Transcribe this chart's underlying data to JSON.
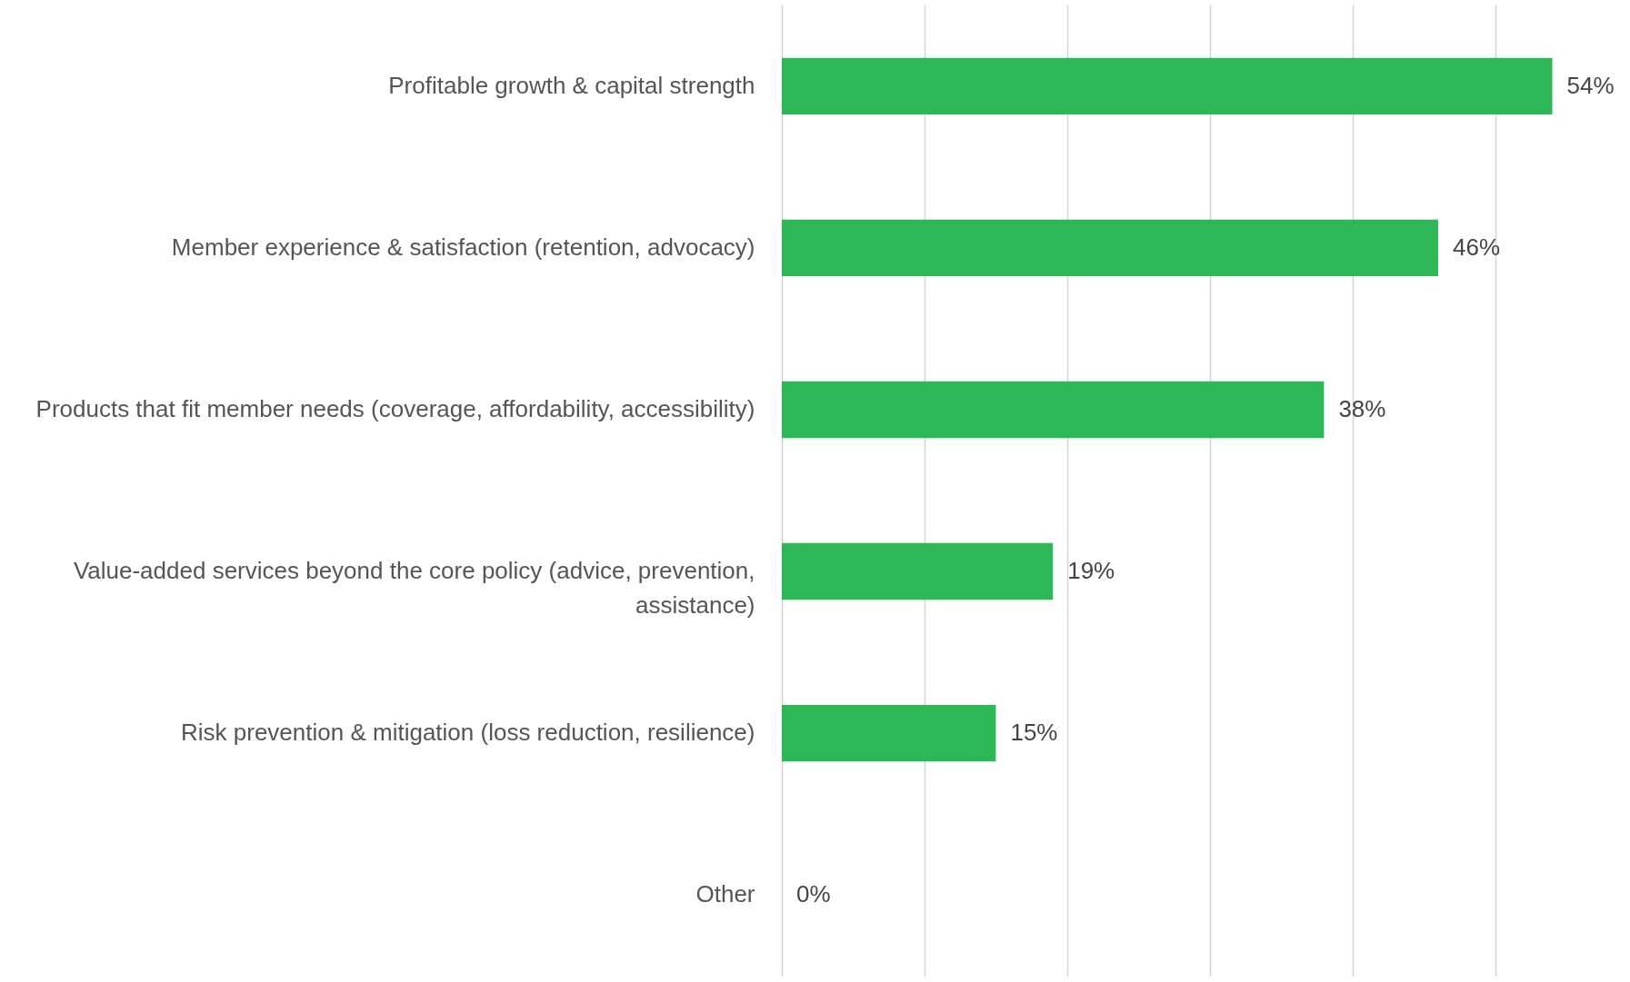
{
  "chart_data": {
    "type": "bar",
    "orientation": "horizontal",
    "categories": [
      "Profitable growth & capital strength",
      "Member experience & satisfaction (retention, advocacy)",
      "Products that fit member needs (coverage, affordability, accessibility)",
      "Value-added services beyond the core policy (advice, prevention, assistance)",
      "Risk prevention & mitigation (loss reduction, resilience)",
      "Other"
    ],
    "values": [
      54,
      46,
      38,
      19,
      15,
      0
    ],
    "value_labels": [
      "54%",
      "46%",
      "38%",
      "19%",
      "15%",
      "0%"
    ],
    "color": "#2db757",
    "xlim": [
      0,
      59
    ],
    "xticks": [
      {
        "value": 0,
        "label": null
      },
      {
        "value": 10,
        "label": null
      },
      {
        "value": 20,
        "label": null
      },
      {
        "value": 30,
        "label": null
      },
      {
        "value": 40,
        "label": null
      },
      {
        "value": 50,
        "label": null
      }
    ],
    "grid": "x",
    "tick_labels": "y"
  }
}
